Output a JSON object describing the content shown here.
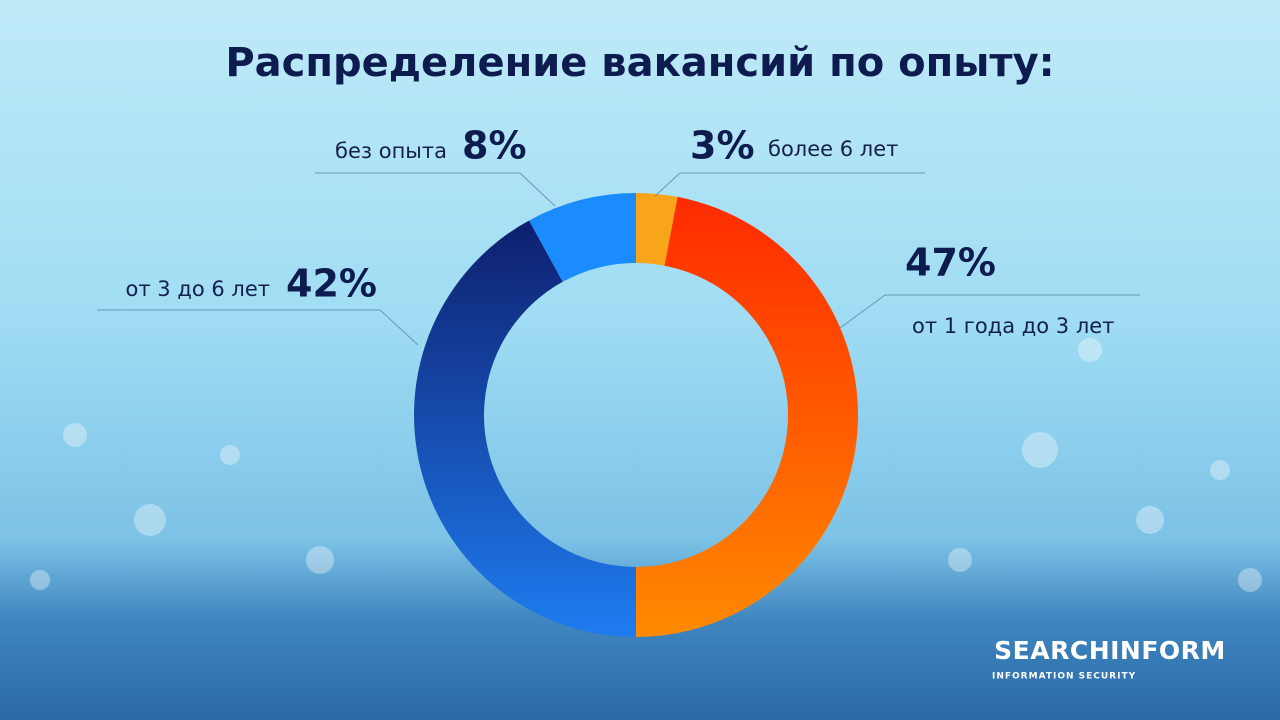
{
  "chart_data": {
    "type": "donut",
    "title": "Распределение вакансий по опыту:",
    "categories": [
      "более 6 лет",
      "от 1 года до 3 лет",
      "от 3 до 6 лет",
      "без опыта"
    ],
    "values": [
      3,
      47,
      42,
      8
    ],
    "value_labels": [
      "3%",
      "47%",
      "42%",
      "8%"
    ],
    "colors": [
      "#f9a51a",
      "#ff3c00",
      "#1a56c8",
      "#1a8cff"
    ]
  },
  "brand": {
    "name": "SEARCHINFORM",
    "tagline": "INFORMATION SECURITY"
  }
}
